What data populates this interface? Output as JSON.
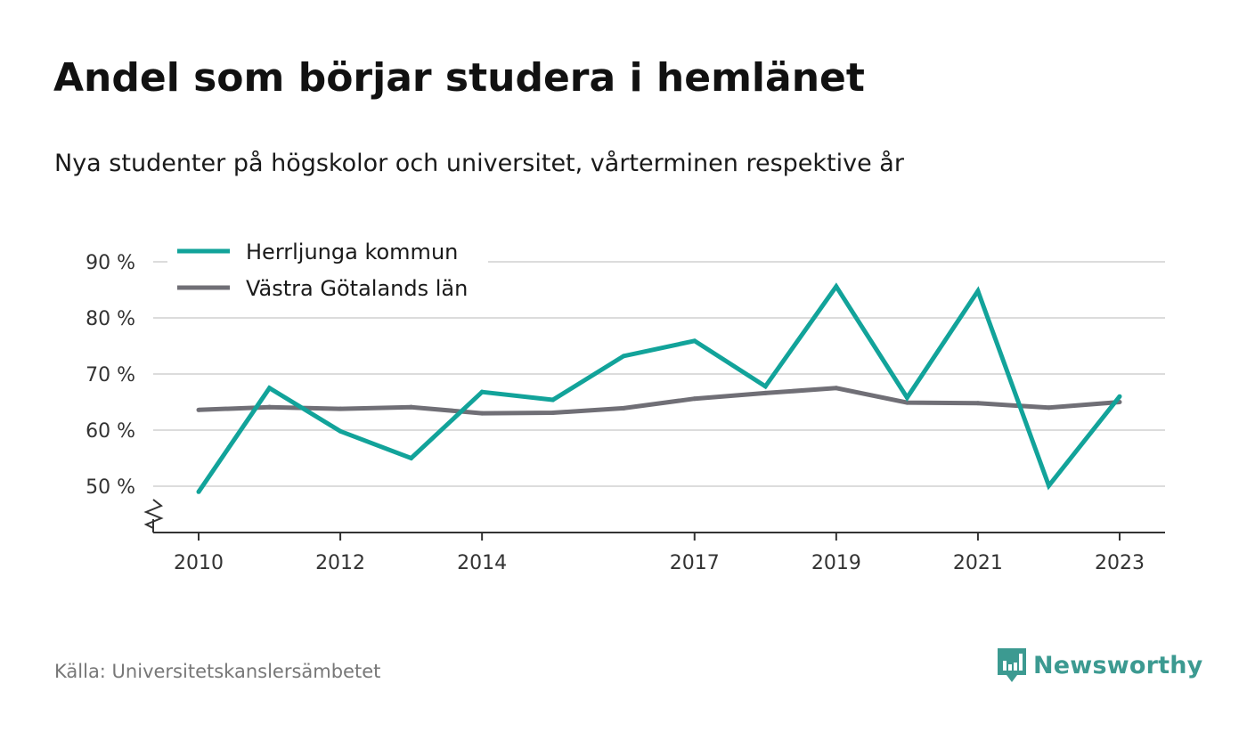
{
  "header": {
    "title": "Andel som börjar studera i hemlänet",
    "subtitle": "Nya studenter på högskolor och universitet, vårterminen respektive år"
  },
  "footer": {
    "source": "Källa: Universitetskanslersämbetet",
    "brand": "Newsworthy",
    "brand_icon": "newsworthy-logo-icon"
  },
  "colors": {
    "herrljunga": "#12a39a",
    "vastra_gotaland": "#706f76",
    "grid": "#dcdcdc",
    "axis": "#333333",
    "brand": "#3c9a91"
  },
  "chart_data": {
    "type": "line",
    "x": [
      2010,
      2011,
      2012,
      2013,
      2014,
      2015,
      2016,
      2017,
      2018,
      2019,
      2020,
      2021,
      2022,
      2023
    ],
    "x_tick_labels": [
      "2010",
      "2012",
      "2014",
      "2017",
      "2019",
      "2021",
      "2023"
    ],
    "y_tick_labels": [
      "90 %",
      "80 %",
      "70 %",
      "60 %",
      "50 %"
    ],
    "y_ticks": [
      90,
      80,
      70,
      60,
      50
    ],
    "ylim": [
      41.5,
      90
    ],
    "xlim": [
      2009.4,
      2023.65
    ],
    "y_axis_break": true,
    "grid": true,
    "legend_position": "top-left",
    "series": [
      {
        "name": "Herrljunga kommun",
        "color": "#12a39a",
        "values": [
          49,
          67.5,
          59.8,
          55,
          66.8,
          65.4,
          73.2,
          75.9,
          67.8,
          85.6,
          65.8,
          84.8,
          50.1,
          66
        ]
      },
      {
        "name": "Västra Götalands län",
        "color": "#706f76",
        "values": [
          63.6,
          64.1,
          63.8,
          64.1,
          63,
          63.1,
          63.9,
          65.6,
          66.6,
          67.5,
          64.9,
          64.8,
          64,
          65
        ]
      }
    ]
  }
}
